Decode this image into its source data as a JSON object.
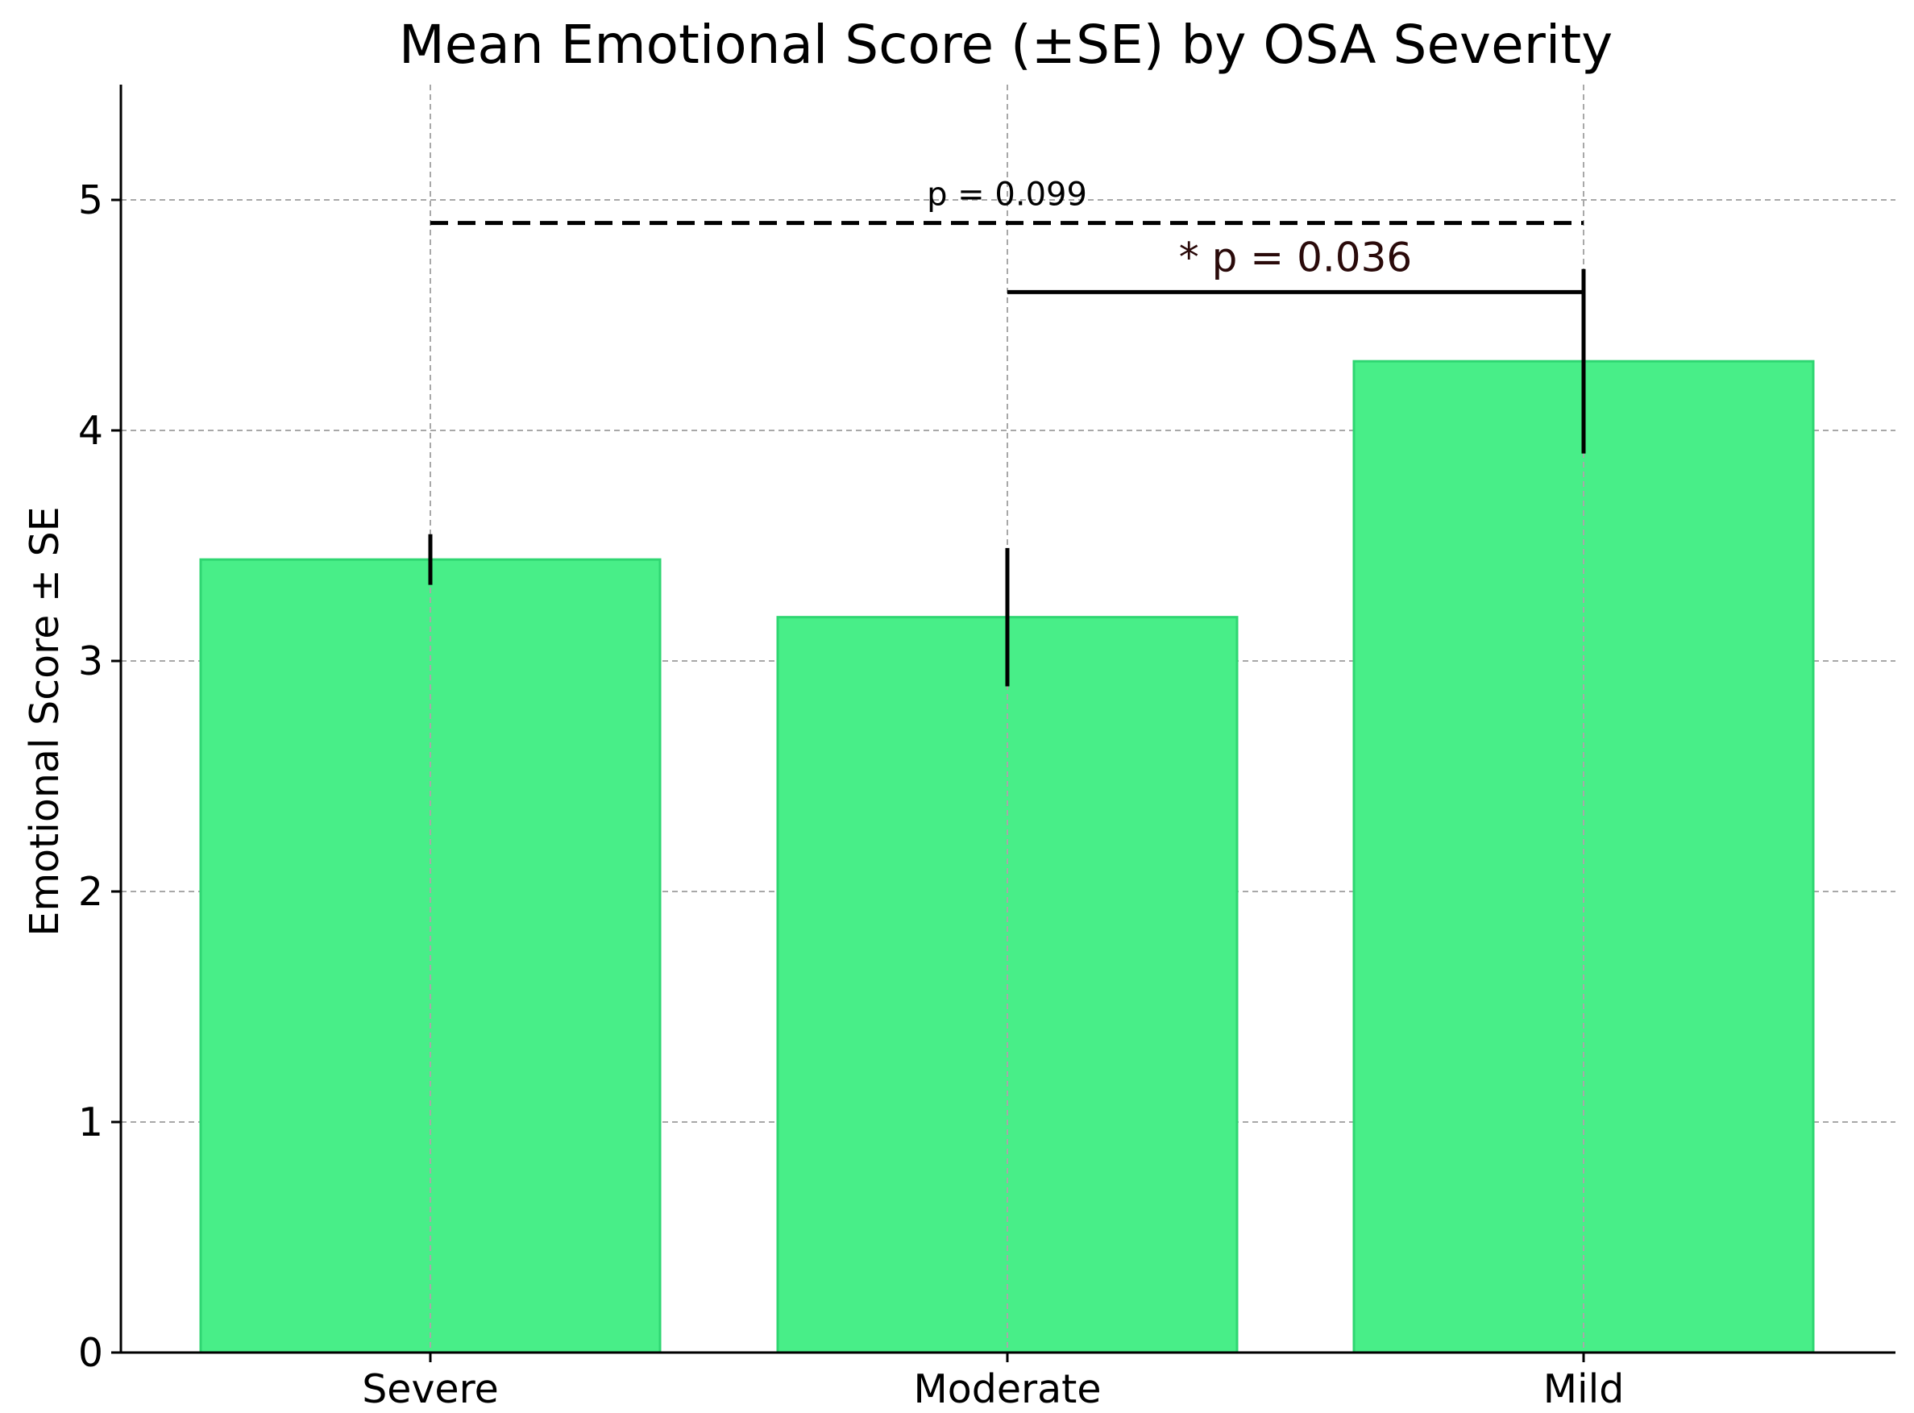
{
  "chart_data": {
    "type": "bar",
    "title": "Mean Emotional Score (±SE) by OSA Severity",
    "xlabel": "",
    "ylabel": "Emotional Score ± SE",
    "categories": [
      "Severe",
      "Moderate",
      "Mild"
    ],
    "values": [
      3.44,
      3.19,
      4.3
    ],
    "errors": [
      0.11,
      0.3,
      0.4
    ],
    "ylim": [
      0,
      5.5
    ],
    "yticks": [
      0,
      1,
      2,
      3,
      4,
      5
    ],
    "ytick_labels": [
      "0",
      "1",
      "2",
      "3",
      "4",
      "5"
    ],
    "grid": true,
    "bar_color": "#48ee88",
    "bar_edge_color": "#2fd672",
    "annotations": [
      {
        "text": "p = 0.099",
        "from": "Severe",
        "to": "Mild",
        "y": 4.9,
        "style": "dashed"
      },
      {
        "text": "* p = 0.036",
        "from": "Moderate",
        "to": "Mild",
        "y": 4.6,
        "style": "solid"
      }
    ]
  }
}
